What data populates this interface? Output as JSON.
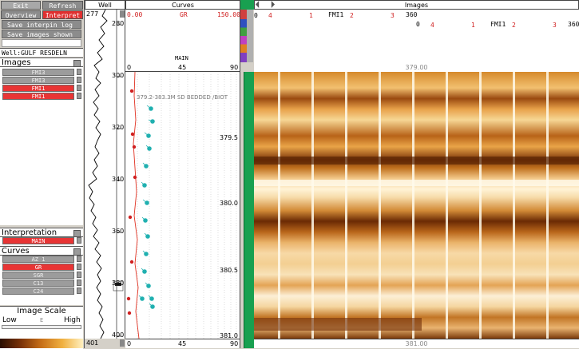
{
  "toolbar": {
    "exit_label": "Exit",
    "refresh_label": "Refresh",
    "overview_label": "Overview",
    "interpret_label": "Interpret",
    "save_interp_label": "Save interpin log",
    "save_images_label": "Save images shown",
    "well_name": "Well:GULF RESDELN"
  },
  "images_section": {
    "title": "Images",
    "items": [
      {
        "label": "FMI3",
        "selected": false
      },
      {
        "label": "FMI3",
        "selected": false
      },
      {
        "label": "FMI1",
        "selected": true
      },
      {
        "label": "FMI1",
        "selected": true
      }
    ]
  },
  "interpretation_section": {
    "title": "Interpretation",
    "items": [
      {
        "label": "MAIN",
        "selected": true
      }
    ]
  },
  "curves_section": {
    "title": "Curves",
    "items": [
      {
        "label": "AZ 1",
        "selected": false
      },
      {
        "label": "GR",
        "selected": true
      },
      {
        "label": "SGR",
        "selected": false
      },
      {
        "label": "C13",
        "selected": false
      },
      {
        "label": "C24",
        "selected": false
      }
    ]
  },
  "image_scale": {
    "title": "Image Scale",
    "low_label": "Low",
    "mid_label": "E",
    "high_label": "High"
  },
  "well_track": {
    "title": "Well",
    "top_depth": "277",
    "bottom_depth": "401",
    "ticks": [
      "280",
      "300",
      "320",
      "340",
      "360",
      "380",
      "400"
    ]
  },
  "curves_track": {
    "title": "Curves",
    "curve_name": "GR",
    "min": "0.00",
    "max": "150.00",
    "dip_label": "MAIN",
    "dip_scale": [
      "0",
      "45",
      "90"
    ],
    "annotation": "379.2-383.3M SD BEDDED /BIOT",
    "depth_labels": [
      "379.5",
      "380.0",
      "380.5",
      "381.0"
    ]
  },
  "images_track": {
    "title": "Images",
    "row1": {
      "image": "FMI1",
      "start": "0",
      "marks": [
        "4",
        "1",
        "2",
        "3"
      ],
      "end": "360"
    },
    "row2": {
      "image": "FMI1",
      "start": "0",
      "marks": [
        "4",
        "1",
        "2",
        "3"
      ],
      "end": "360"
    },
    "top_depth": "379.00",
    "bottom_depth": "381.00"
  },
  "colors": {
    "accent_red": "#e03030",
    "selected_red": "#e83535",
    "dip_teal": "#20b0b0",
    "curve_red": "#d02020",
    "panel_gray": "#d4d0c8",
    "green_bar": "#18a050"
  }
}
